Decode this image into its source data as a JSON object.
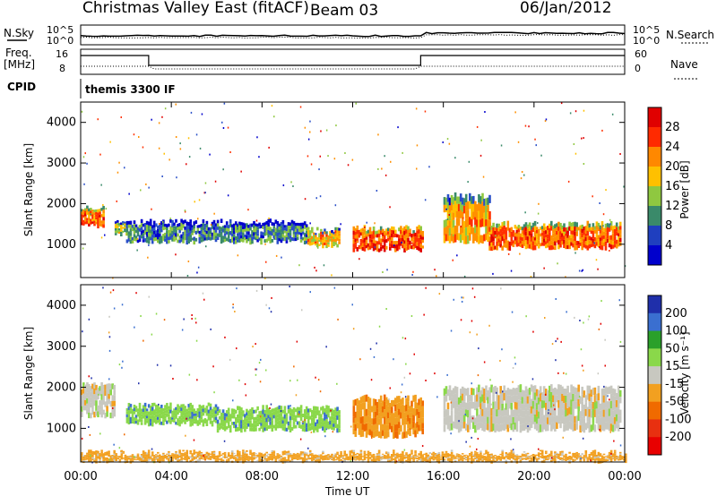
{
  "header": {
    "station": "Christmas Valley East (fitACF)",
    "beam": "Beam 03",
    "date": "06/Jan/2012"
  },
  "left_labels": {
    "nsky": "N.Sky",
    "nsky_ticks": [
      "10^5",
      "10^0"
    ],
    "freq": "Freq.",
    "freq_unit": "[MHz]",
    "freq_ticks": [
      "16",
      "8"
    ],
    "cpid": "CPID"
  },
  "right_labels": {
    "nsearch": "N.Search",
    "nsearch_ticks": [
      "10^5",
      "10^0"
    ],
    "nave": "Nave",
    "nave_ticks": [
      "60",
      "0"
    ]
  },
  "cpid_text": "themis 3300 IF",
  "power_panel": {
    "ylabel": "Slant Range [km]",
    "cbar_label": "Power [dB]",
    "cbar_ticks": [
      "28",
      "24",
      "20",
      "16",
      "12",
      "8",
      "4"
    ],
    "cbar_colors": [
      "#e00000",
      "#ff2a00",
      "#ff8800",
      "#ffc000",
      "#8fc840",
      "#3a8a6a",
      "#1f3fbf",
      "#0000cc"
    ]
  },
  "velocity_panel": {
    "ylabel": "Slant Range [km]",
    "cbar_label": "Velocity [m s⁻¹]",
    "cbar_ticks": [
      "200",
      "100",
      "50",
      "15",
      "-15",
      "-50",
      "-100",
      "-200"
    ],
    "cbar_colors": [
      "#1f2faa",
      "#3a6fd0",
      "#2aa02a",
      "#8ad84a",
      "#c8c8c0",
      "#f2a020",
      "#f06a00",
      "#e83010",
      "#e80000"
    ]
  },
  "xaxis": {
    "label": "Time UT",
    "ticks": [
      "00:00",
      "04:00",
      "08:00",
      "12:00",
      "16:00",
      "20:00",
      "00:00"
    ]
  },
  "chart_data": [
    {
      "type": "heatmap",
      "title": "Power [dB]",
      "ylabel": "Slant Range [km]",
      "xlabel": "Time UT",
      "xlim": [
        0,
        24
      ],
      "ylim": [
        180,
        4500
      ],
      "yticks": [
        1000,
        2000,
        3000,
        4000
      ],
      "colorbar_ticks": [
        4,
        8,
        12,
        16,
        20,
        24,
        28
      ],
      "bands": [
        {
          "t": [
            0.0,
            1.0
          ],
          "range": [
            1450,
            1900
          ],
          "power": 22
        },
        {
          "t": [
            1.5,
            2.0
          ],
          "range": [
            1250,
            1550
          ],
          "power": 14
        },
        {
          "t": [
            2.0,
            10.0
          ],
          "range": [
            1050,
            1550
          ],
          "power": 10
        },
        {
          "t": [
            10.0,
            11.4
          ],
          "range": [
            950,
            1350
          ],
          "power": 18
        },
        {
          "t": [
            12.0,
            15.1
          ],
          "range": [
            850,
            1400
          ],
          "power": 24
        },
        {
          "t": [
            16.0,
            18.0
          ],
          "range": [
            1050,
            2200
          ],
          "power": 18
        },
        {
          "t": [
            18.0,
            23.8
          ],
          "range": [
            900,
            1500
          ],
          "power": 22
        }
      ]
    },
    {
      "type": "heatmap",
      "title": "Velocity [m s⁻¹]",
      "ylabel": "Slant Range [km]",
      "xlabel": "Time UT",
      "xlim": [
        0,
        24
      ],
      "ylim": [
        180,
        4500
      ],
      "yticks": [
        1000,
        2000,
        3000,
        4000
      ],
      "colorbar_ticks": [
        200,
        100,
        50,
        15,
        -15,
        -50,
        -100,
        -200
      ],
      "bands": [
        {
          "t": [
            0.0,
            1.5
          ],
          "range": [
            1300,
            2100
          ],
          "velocity": 0
        },
        {
          "t": [
            2.0,
            6.0
          ],
          "range": [
            1100,
            1550
          ],
          "velocity": 60
        },
        {
          "t": [
            6.0,
            11.4
          ],
          "range": [
            950,
            1500
          ],
          "velocity": 60
        },
        {
          "t": [
            12.0,
            15.1
          ],
          "range": [
            800,
            1750
          ],
          "velocity": -40
        },
        {
          "t": [
            16.0,
            23.8
          ],
          "range": [
            950,
            2000
          ],
          "velocity": 0
        },
        {
          "t": [
            0.0,
            24.0
          ],
          "range": [
            200,
            400
          ],
          "velocity": -30
        }
      ]
    }
  ]
}
